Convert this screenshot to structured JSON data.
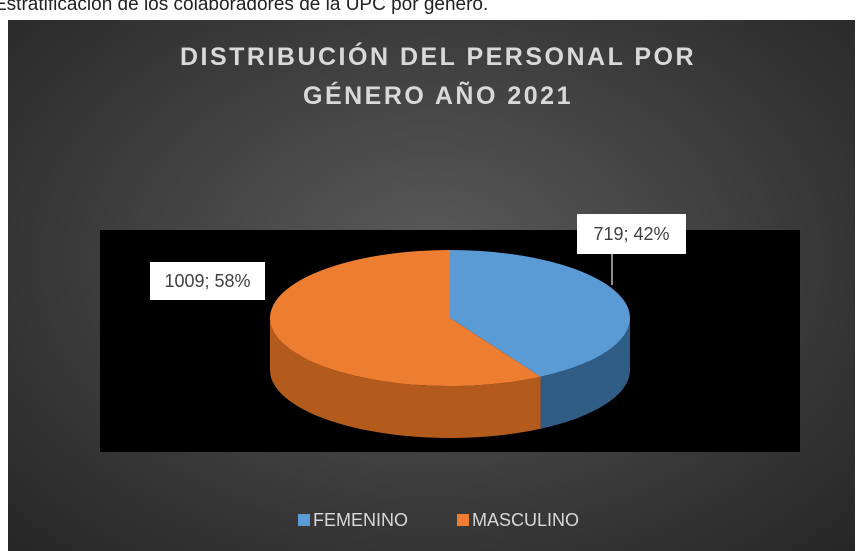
{
  "caption": "Estratificación de los colaboradores de la UPC por género.",
  "chart_data": {
    "type": "pie",
    "title": "DISTRIBUCIÓN DEL PERSONAL POR GÉNERO AÑO 2021",
    "categories": [
      "FEMENINO",
      "MASCULINO"
    ],
    "values": [
      719,
      1009
    ],
    "value_labels": [
      "719; 42%",
      "1009; 58%"
    ],
    "colors": [
      "#5b9bd5",
      "#ed7d31"
    ],
    "legend": "bottom"
  }
}
